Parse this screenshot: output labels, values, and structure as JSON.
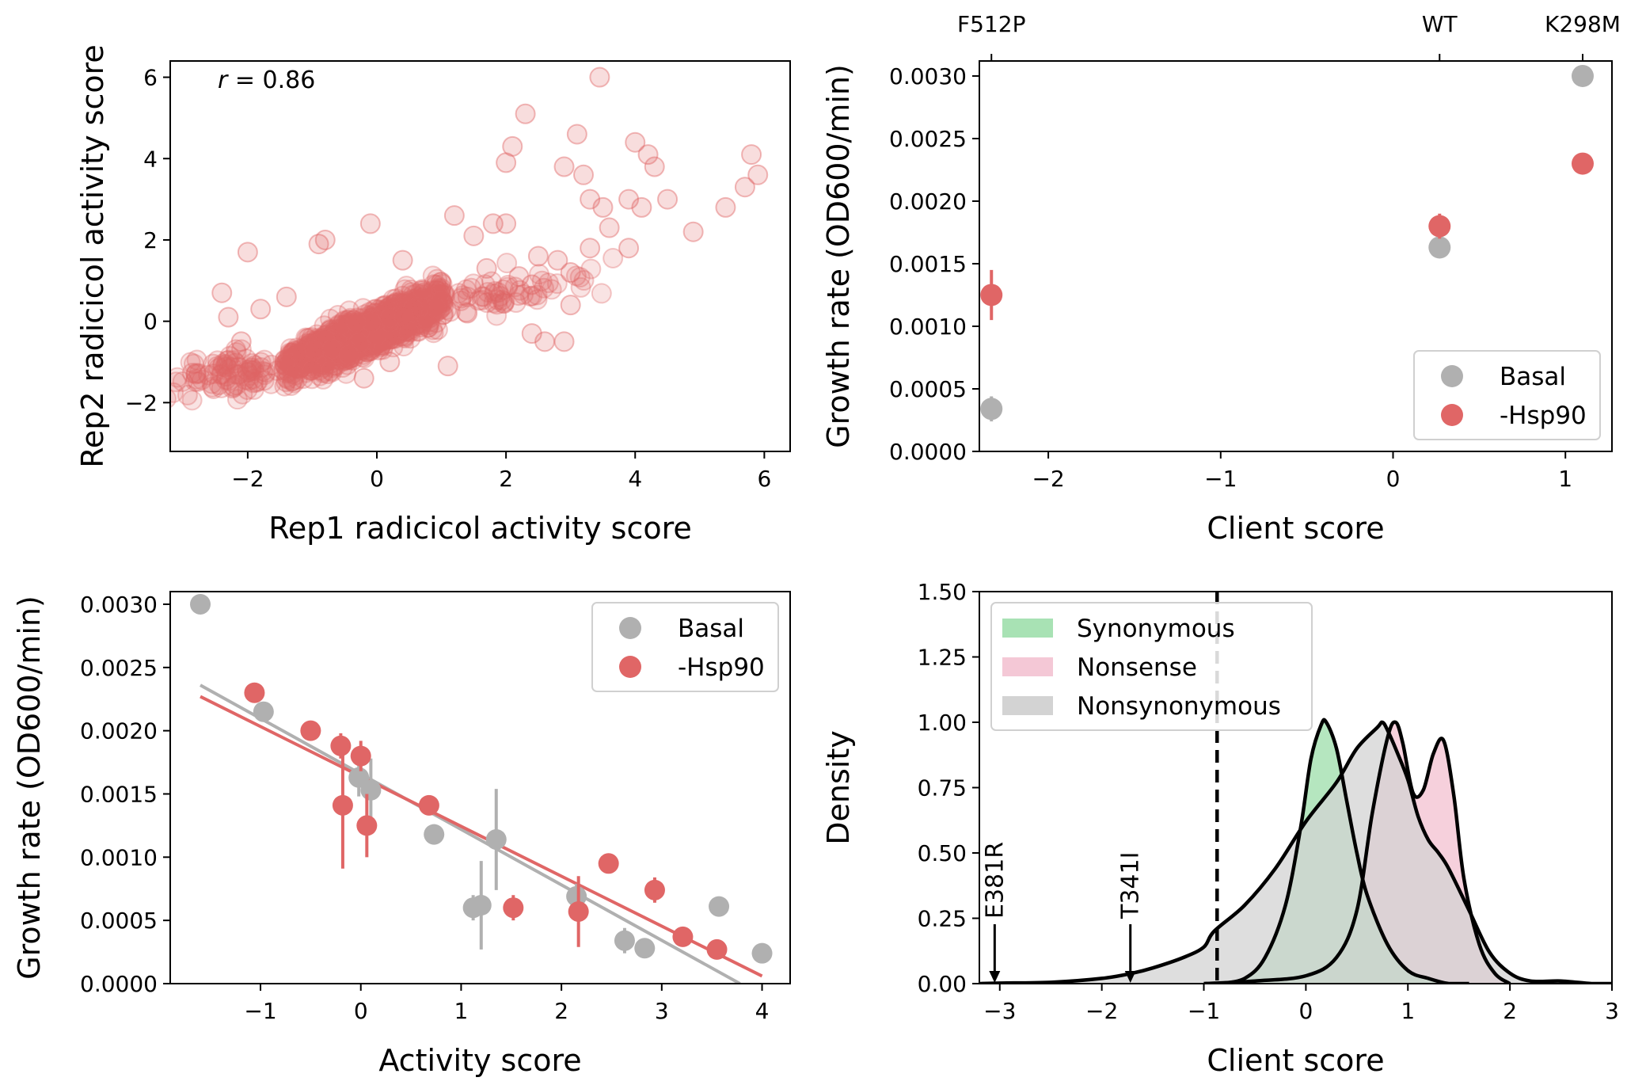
{
  "chart_data": [
    {
      "type": "scatter",
      "panel": "top-left",
      "xlabel": "Rep1 radicicol activity score",
      "ylabel": "Rep2 radicicol activity score",
      "xlim": [
        -3.2,
        6.4
      ],
      "ylim": [
        -3.2,
        6.4
      ],
      "xticks": [
        -2,
        0,
        2,
        4,
        6
      ],
      "yticks": [
        -2,
        0,
        2,
        4,
        6
      ],
      "annotation": {
        "prefix": "r",
        "text": " = 0.86"
      },
      "color": "#e06666",
      "series": [
        {
          "note": "approximately 1500 points; strong positive correlation with dense core near (-0.2,-0.3)",
          "highlighted_points": [
            [
              3.45,
              6.0
            ],
            [
              2.3,
              5.1
            ],
            [
              3.1,
              4.6
            ],
            [
              2.1,
              4.3
            ],
            [
              4.0,
              4.4
            ],
            [
              4.2,
              4.1
            ],
            [
              4.3,
              3.8
            ],
            [
              2.0,
              3.9
            ],
            [
              2.9,
              3.8
            ],
            [
              3.2,
              3.6
            ],
            [
              5.8,
              4.1
            ],
            [
              5.9,
              3.6
            ],
            [
              5.7,
              3.3
            ],
            [
              5.4,
              2.8
            ],
            [
              4.5,
              3.0
            ],
            [
              3.9,
              3.0
            ],
            [
              4.1,
              2.8
            ],
            [
              3.5,
              2.8
            ],
            [
              3.3,
              3.0
            ],
            [
              4.9,
              2.2
            ],
            [
              3.9,
              1.8
            ],
            [
              3.6,
              2.3
            ],
            [
              2.5,
              1.6
            ],
            [
              3.3,
              1.8
            ],
            [
              3.0,
              1.2
            ],
            [
              2.4,
              0.9
            ],
            [
              2.8,
              1.5
            ],
            [
              3.0,
              0.4
            ],
            [
              2.4,
              -0.3
            ],
            [
              2.9,
              -0.5
            ],
            [
              2.6,
              -0.5
            ],
            [
              1.8,
              2.4
            ],
            [
              -0.1,
              2.4
            ],
            [
              -0.8,
              2.0
            ],
            [
              -2.0,
              1.7
            ],
            [
              -2.4,
              0.7
            ],
            [
              -0.9,
              1.9
            ],
            [
              1.2,
              2.6
            ],
            [
              -2.8,
              -1.3
            ],
            [
              -2.4,
              -1.3
            ],
            [
              -2.1,
              -0.5
            ],
            [
              -1.8,
              0.3
            ],
            [
              -1.0,
              -1.2
            ],
            [
              0.2,
              -1.0
            ],
            [
              1.1,
              -1.1
            ],
            [
              -0.2,
              -1.4
            ],
            [
              1.7,
              1.3
            ],
            [
              0.4,
              1.5
            ],
            [
              1.5,
              2.1
            ],
            [
              2.0,
              2.4
            ],
            [
              2.2,
              1.1
            ],
            [
              1.4,
              0.2
            ],
            [
              -1.4,
              0.6
            ],
            [
              -2.3,
              0.1
            ]
          ]
        }
      ]
    },
    {
      "type": "scatter",
      "panel": "top-right",
      "xlabel": "Client score",
      "ylabel": "Growth rate (OD600/min)",
      "xlim": [
        -2.4,
        1.27
      ],
      "ylim": [
        0,
        0.00312
      ],
      "xticks": [
        -2,
        -1,
        0,
        1
      ],
      "yticks": [
        0,
        0.0005,
        0.001,
        0.0015,
        0.002,
        0.0025,
        0.003
      ],
      "ytick_labels": [
        "0.0000",
        "0.0005",
        "0.0010",
        "0.0015",
        "0.0020",
        "0.0025",
        "0.0030"
      ],
      "top_axis_labels": [
        {
          "label": "F512P",
          "x": -2.33
        },
        {
          "label": "WT",
          "x": 0.27
        },
        {
          "label": "K298M",
          "x": 1.1
        }
      ],
      "legend": {
        "placement": "lower-right",
        "entries": [
          "Basal",
          "-Hsp90"
        ]
      },
      "series": [
        {
          "name": "Basal",
          "color": "#b0b0b0",
          "x": [
            -2.33,
            0.27,
            1.1
          ],
          "y": [
            0.00034,
            0.00163,
            0.003
          ],
          "err": [
            0.0001,
            5e-05,
            4e-05
          ]
        },
        {
          "name": "-Hsp90",
          "color": "#e06666",
          "x": [
            -2.33,
            0.27,
            1.1
          ],
          "y": [
            0.00125,
            0.0018,
            0.0023
          ],
          "err": [
            0.0002,
            0.0001,
            4e-05
          ]
        }
      ]
    },
    {
      "type": "scatter",
      "panel": "bottom-left",
      "xlabel": "Activity score",
      "ylabel": "Growth rate (OD600/min)",
      "xlim": [
        -1.9,
        4.28
      ],
      "ylim": [
        0,
        0.0031
      ],
      "xticks": [
        -1,
        0,
        1,
        2,
        3,
        4
      ],
      "yticks": [
        0,
        0.0005,
        0.001,
        0.0015,
        0.002,
        0.0025,
        0.003
      ],
      "ytick_labels": [
        "0.0000",
        "0.0005",
        "0.0010",
        "0.0015",
        "0.0020",
        "0.0025",
        "0.0030"
      ],
      "legend": {
        "placement": "top-right",
        "entries": [
          "Basal",
          "-Hsp90"
        ]
      },
      "series": [
        {
          "name": "Basal",
          "color": "#b0b0b0",
          "x": [
            -1.6,
            -0.97,
            -0.02,
            0.1,
            0.73,
            1.12,
            1.2,
            1.35,
            2.15,
            2.63,
            2.83,
            3.57,
            4.0
          ],
          "y": [
            0.003,
            0.00215,
            0.00163,
            0.00153,
            0.00118,
            0.0006,
            0.00062,
            0.00114,
            0.00069,
            0.00034,
            0.00028,
            0.00061,
            0.00024
          ],
          "err": [
            3e-05,
            5e-05,
            0.00015,
            0.00025,
            8e-05,
            0.0001,
            0.00035,
            0.0004,
            0.0001,
            0.0001,
            4e-05,
            4e-05,
            3e-05
          ],
          "fit": {
            "x": [
              -1.6,
              3.78
            ],
            "y": [
              0.00236,
              0.0
            ]
          }
        },
        {
          "name": "-Hsp90",
          "color": "#e06666",
          "x": [
            -1.06,
            -0.5,
            -0.2,
            -0.18,
            0.0,
            0.06,
            0.68,
            1.52,
            2.17,
            2.47,
            2.93,
            3.21,
            3.55
          ],
          "y": [
            0.0023,
            0.002,
            0.00188,
            0.00141,
            0.0018,
            0.00125,
            0.00141,
            0.0006,
            0.00057,
            0.00095,
            0.00074,
            0.00037,
            0.00027
          ],
          "err": [
            3e-05,
            4e-05,
            0.0001,
            0.0005,
            0.00012,
            0.00025,
            6e-05,
            0.0001,
            0.00028,
            4e-05,
            0.0001,
            4e-05,
            4e-05
          ],
          "fit": {
            "x": [
              -1.6,
              4.0
            ],
            "y": [
              0.00227,
              6e-05
            ]
          }
        }
      ]
    },
    {
      "type": "area",
      "panel": "bottom-right",
      "xlabel": "Client score",
      "ylabel": "Density",
      "xlim": [
        -3.2,
        3.0
      ],
      "ylim": [
        0,
        1.5
      ],
      "xticks": [
        -3,
        -2,
        -1,
        0,
        1,
        2,
        3
      ],
      "yticks": [
        0,
        0.25,
        0.5,
        0.75,
        1.0,
        1.25,
        1.5
      ],
      "ytick_labels": [
        "0.00",
        "0.25",
        "0.50",
        "0.75",
        "1.00",
        "1.25",
        "1.50"
      ],
      "legend": {
        "placement": "top-left",
        "entries": [
          "Synonymous",
          "Nonsense",
          "Nonsynonymous"
        ]
      },
      "threshold": {
        "x": -0.87,
        "style": "dashed"
      },
      "markers": [
        {
          "label": "E381R",
          "x": -3.05
        },
        {
          "label": "T341I",
          "x": -1.72
        }
      ],
      "series": [
        {
          "name": "Synonymous",
          "color": "#a8e2b4",
          "x": [
            -0.85,
            -0.6,
            -0.4,
            -0.2,
            -0.05,
            0.05,
            0.15,
            0.2,
            0.3,
            0.4,
            0.5,
            0.6,
            0.8,
            1.0,
            1.2,
            1.4,
            1.6
          ],
          "y": [
            0.0,
            0.02,
            0.1,
            0.3,
            0.6,
            0.86,
            0.99,
            1.0,
            0.9,
            0.7,
            0.5,
            0.34,
            0.15,
            0.05,
            0.02,
            0.0,
            0.0
          ]
        },
        {
          "name": "Nonsense",
          "color": "#f4c8d6",
          "x": [
            -1.0,
            -0.5,
            0.0,
            0.3,
            0.5,
            0.65,
            0.8,
            0.88,
            0.95,
            1.05,
            1.15,
            1.25,
            1.35,
            1.45,
            1.55,
            1.7,
            1.85,
            2.0
          ],
          "y": [
            0.0,
            0.01,
            0.03,
            0.1,
            0.28,
            0.65,
            0.94,
            1.0,
            0.92,
            0.73,
            0.74,
            0.88,
            0.93,
            0.72,
            0.4,
            0.15,
            0.04,
            0.0
          ]
        },
        {
          "name": "Nonsynonymous",
          "color": "#d3d3d3",
          "x": [
            -3.2,
            -3.0,
            -2.5,
            -2.0,
            -1.7,
            -1.5,
            -1.2,
            -1.0,
            -0.9,
            -0.6,
            -0.3,
            0.0,
            0.3,
            0.5,
            0.7,
            0.75,
            0.8,
            0.9,
            1.0,
            1.1,
            1.2,
            1.3,
            1.4,
            1.6,
            1.8,
            2.0,
            2.2,
            2.5,
            2.8,
            3.0
          ],
          "y": [
            0.0,
            0.002,
            0.005,
            0.02,
            0.04,
            0.06,
            0.1,
            0.14,
            0.2,
            0.3,
            0.44,
            0.62,
            0.77,
            0.9,
            0.98,
            1.0,
            0.97,
            0.88,
            0.78,
            0.64,
            0.55,
            0.5,
            0.44,
            0.28,
            0.12,
            0.04,
            0.01,
            0.01,
            0.0,
            0.0
          ]
        }
      ]
    }
  ]
}
